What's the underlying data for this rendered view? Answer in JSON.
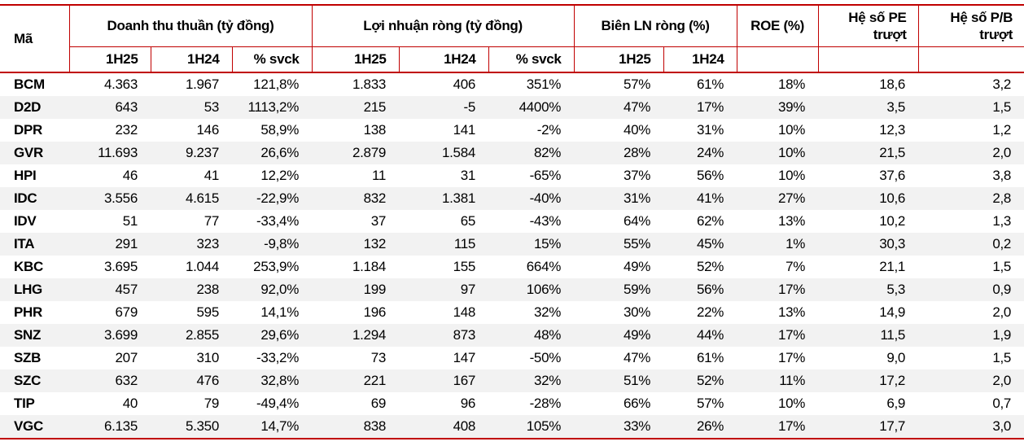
{
  "colors": {
    "border_red": "#C00000",
    "stripe_gray": "#F2F2F2",
    "text": "#000000",
    "background": "#FFFFFF"
  },
  "header": {
    "ticker": "Mã",
    "revenue_group": "Doanh thu thuần (tỷ đồng)",
    "profit_group": "Lợi nhuận ròng (tỷ đồng)",
    "margin_group": "Biên LN ròng (%)",
    "roe": "ROE (%)",
    "pe": "Hệ số PE\ntrượt",
    "pb": "Hệ số P/B\ntrượt",
    "sub_h25": "1H25",
    "sub_h24": "1H24",
    "sub_yoy": "% svck"
  },
  "chart_data": {
    "type": "table",
    "title": "",
    "column_groups": [
      {
        "label": "Mã",
        "span": 1
      },
      {
        "label": "Doanh thu thuần (tỷ đồng)",
        "span": 3,
        "sub": [
          "1H25",
          "1H24",
          "% svck"
        ]
      },
      {
        "label": "Lợi nhuận ròng (tỷ đồng)",
        "span": 3,
        "sub": [
          "1H25",
          "1H24",
          "% svck"
        ]
      },
      {
        "label": "Biên LN ròng (%)",
        "span": 2,
        "sub": [
          "1H25",
          "1H24"
        ]
      },
      {
        "label": "ROE (%)",
        "span": 1
      },
      {
        "label": "Hệ số PE trượt",
        "span": 1
      },
      {
        "label": "Hệ số P/B trượt",
        "span": 1
      }
    ],
    "columns": [
      "Mã",
      "Doanh thu thuần 1H25",
      "Doanh thu thuần 1H24",
      "Doanh thu % svck",
      "Lợi nhuận ròng 1H25",
      "Lợi nhuận ròng 1H24",
      "Lợi nhuận % svck",
      "Biên LN ròng 1H25",
      "Biên LN ròng 1H24",
      "ROE (%)",
      "Hệ số PE trượt",
      "Hệ số P/B trượt"
    ],
    "rows": [
      [
        "BCM",
        "4.363",
        "1.967",
        "121,8%",
        "1.833",
        "406",
        "351%",
        "57%",
        "61%",
        "18%",
        "18,6",
        "3,2"
      ],
      [
        "D2D",
        "643",
        "53",
        "1113,2%",
        "215",
        "-5",
        "4400%",
        "47%",
        "17%",
        "39%",
        "3,5",
        "1,5"
      ],
      [
        "DPR",
        "232",
        "146",
        "58,9%",
        "138",
        "141",
        "-2%",
        "40%",
        "31%",
        "10%",
        "12,3",
        "1,2"
      ],
      [
        "GVR",
        "11.693",
        "9.237",
        "26,6%",
        "2.879",
        "1.584",
        "82%",
        "28%",
        "24%",
        "10%",
        "21,5",
        "2,0"
      ],
      [
        "HPI",
        "46",
        "41",
        "12,2%",
        "11",
        "31",
        "-65%",
        "37%",
        "56%",
        "10%",
        "37,6",
        "3,8"
      ],
      [
        "IDC",
        "3.556",
        "4.615",
        "-22,9%",
        "832",
        "1.381",
        "-40%",
        "31%",
        "41%",
        "27%",
        "10,6",
        "2,8"
      ],
      [
        "IDV",
        "51",
        "77",
        "-33,4%",
        "37",
        "65",
        "-43%",
        "64%",
        "62%",
        "13%",
        "10,2",
        "1,3"
      ],
      [
        "ITA",
        "291",
        "323",
        "-9,8%",
        "132",
        "115",
        "15%",
        "55%",
        "45%",
        "1%",
        "30,3",
        "0,2"
      ],
      [
        "KBC",
        "3.695",
        "1.044",
        "253,9%",
        "1.184",
        "155",
        "664%",
        "49%",
        "52%",
        "7%",
        "21,1",
        "1,5"
      ],
      [
        "LHG",
        "457",
        "238",
        "92,0%",
        "199",
        "97",
        "106%",
        "59%",
        "56%",
        "17%",
        "5,3",
        "0,9"
      ],
      [
        "PHR",
        "679",
        "595",
        "14,1%",
        "196",
        "148",
        "32%",
        "30%",
        "22%",
        "13%",
        "14,9",
        "2,0"
      ],
      [
        "SNZ",
        "3.699",
        "2.855",
        "29,6%",
        "1.294",
        "873",
        "48%",
        "49%",
        "44%",
        "17%",
        "11,5",
        "1,9"
      ],
      [
        "SZB",
        "207",
        "310",
        "-33,2%",
        "73",
        "147",
        "-50%",
        "47%",
        "61%",
        "17%",
        "9,0",
        "1,5"
      ],
      [
        "SZC",
        "632",
        "476",
        "32,8%",
        "221",
        "167",
        "32%",
        "51%",
        "52%",
        "11%",
        "17,2",
        "2,0"
      ],
      [
        "TIP",
        "40",
        "79",
        "-49,4%",
        "69",
        "96",
        "-28%",
        "66%",
        "57%",
        "10%",
        "6,9",
        "0,7"
      ],
      [
        "VGC",
        "6.135",
        "5.350",
        "14,7%",
        "838",
        "408",
        "105%",
        "33%",
        "26%",
        "17%",
        "17,7",
        "3,0"
      ]
    ]
  }
}
